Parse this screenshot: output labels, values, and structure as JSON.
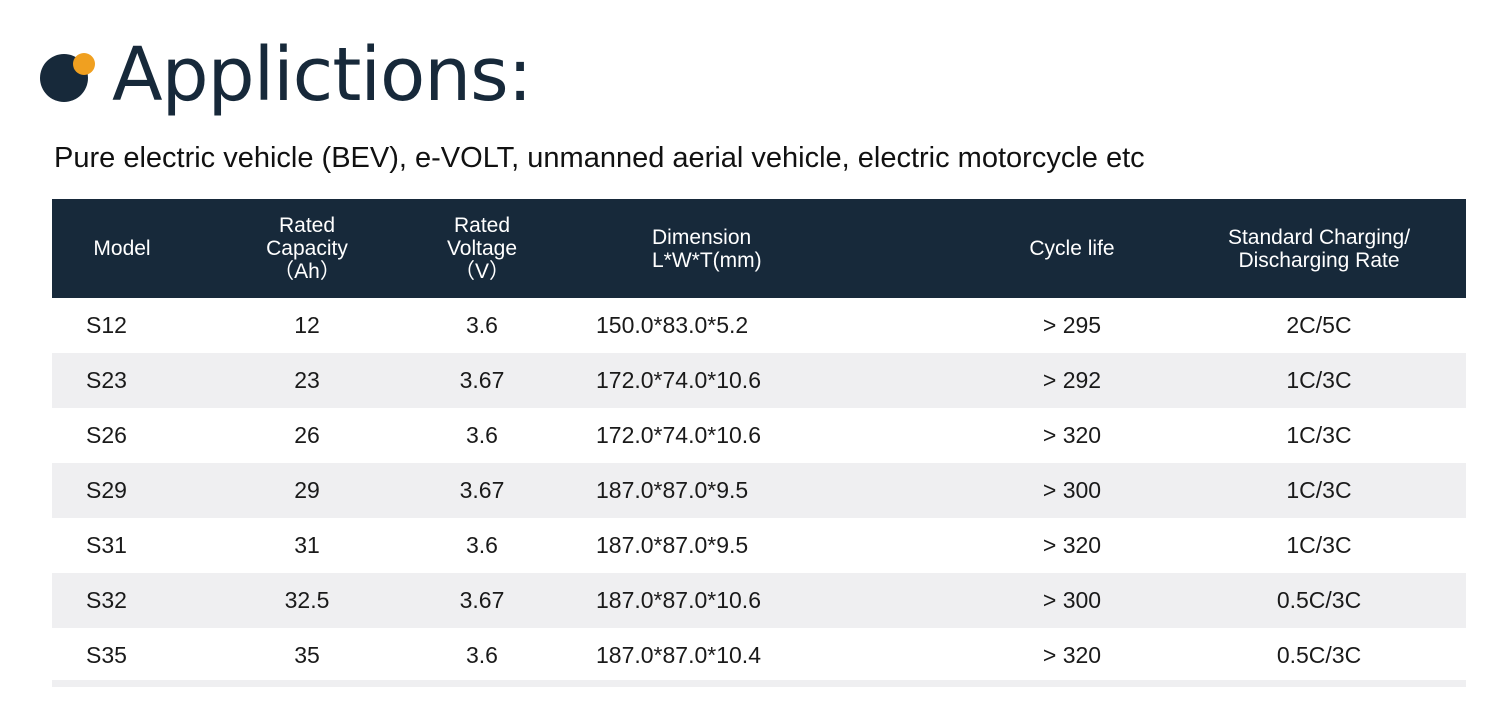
{
  "title": "Applictions:",
  "subtitle": "Pure electric vehicle (BEV), e-VOLT, unmanned aerial vehicle, electric motorcycle etc",
  "colors": {
    "header_bg": "#17293a",
    "accent": "#f0a020",
    "stripe": "#efeff1"
  },
  "table": {
    "headers": [
      [
        "Model"
      ],
      [
        "Rated",
        "Capacity",
        "（Ah）"
      ],
      [
        "Rated",
        "Voltage",
        "（V）"
      ],
      [
        "Dimension",
        "L*W*T(mm)"
      ],
      [
        "Cycle life"
      ],
      [
        "Standard Charging/",
        "Discharging Rate"
      ]
    ],
    "rows": [
      [
        "S12",
        "12",
        "3.6",
        "150.0*83.0*5.2",
        "> 295",
        "2C/5C"
      ],
      [
        "S23",
        "23",
        "3.67",
        "172.0*74.0*10.6",
        "> 292",
        "1C/3C"
      ],
      [
        "S26",
        "26",
        "3.6",
        "172.0*74.0*10.6",
        "> 320",
        "1C/3C"
      ],
      [
        "S29",
        "29",
        "3.67",
        "187.0*87.0*9.5",
        "> 300",
        "1C/3C"
      ],
      [
        "S31",
        "31",
        "3.6",
        "187.0*87.0*9.5",
        "> 320",
        "1C/3C"
      ],
      [
        "S32",
        "32.5",
        "3.67",
        "187.0*87.0*10.6",
        "> 300",
        "0.5C/3C"
      ],
      [
        "S35",
        "35",
        "3.6",
        "187.0*87.0*10.4",
        "> 320",
        "0.5C/3C"
      ]
    ]
  }
}
